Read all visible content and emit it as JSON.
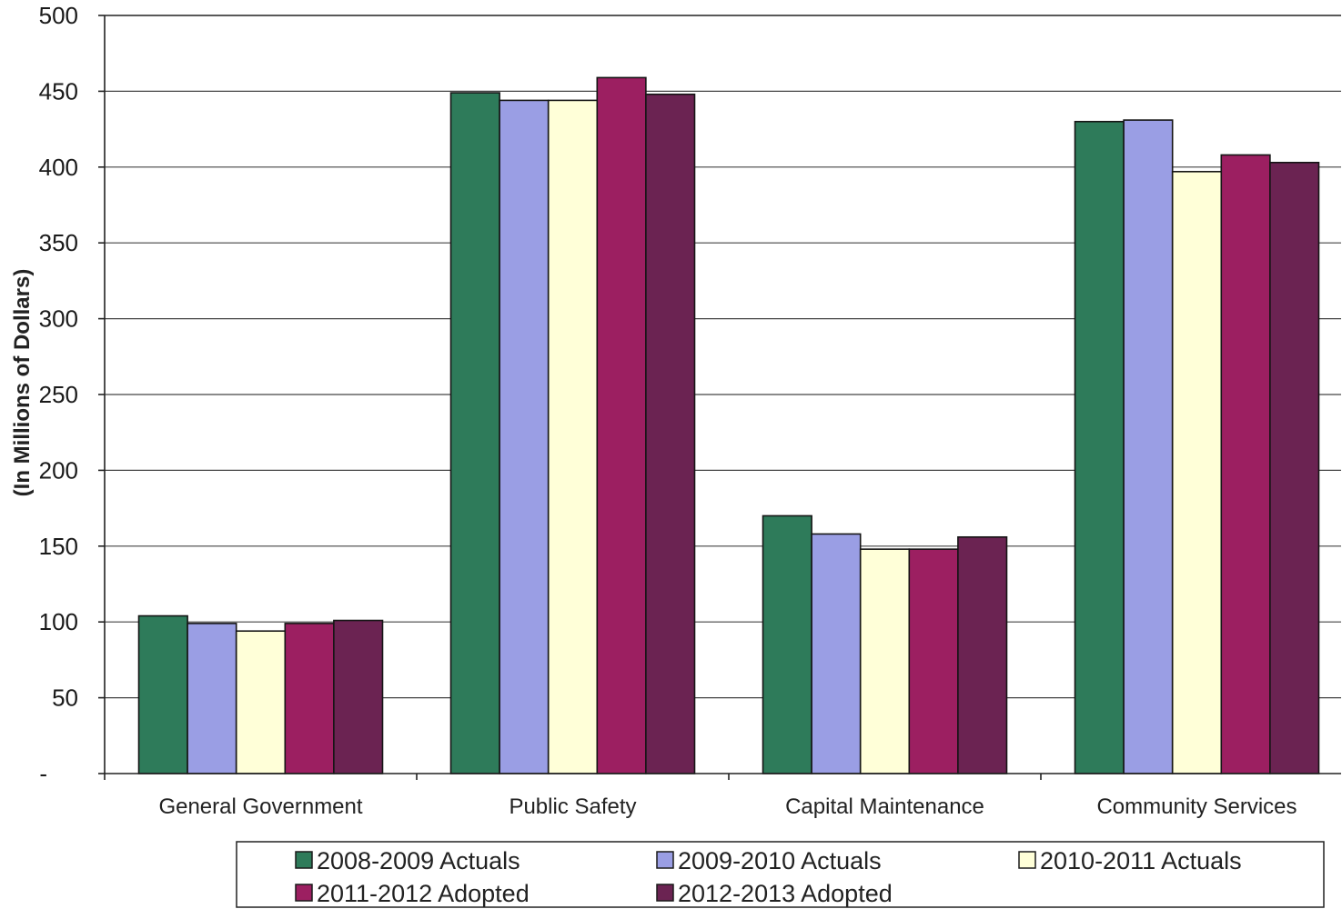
{
  "chart_data": {
    "type": "bar",
    "ylabel": "(In Millions of Dollars)",
    "ylim": [
      0,
      500
    ],
    "yticks": [
      0,
      50,
      100,
      150,
      200,
      250,
      300,
      350,
      400,
      450,
      500
    ],
    "ytick_labels": [
      "-",
      "50",
      "100",
      "150",
      "200",
      "250",
      "300",
      "350",
      "400",
      "450",
      "500"
    ],
    "grid": true,
    "legend_position": "bottom",
    "categories": [
      "General Government",
      "Public Safety",
      "Capital Maintenance",
      "Community Services"
    ],
    "series": [
      {
        "name": "2008-2009 Actuals",
        "color": "#2e7b5a",
        "values": [
          104,
          449,
          170,
          430
        ]
      },
      {
        "name": "2009-2010 Actuals",
        "color": "#9a9ee4",
        "values": [
          99,
          444,
          158,
          431
        ]
      },
      {
        "name": "2010-2011 Actuals",
        "color": "#ffffd8",
        "values": [
          94,
          444,
          148,
          397
        ]
      },
      {
        "name": "2011-2012 Adopted",
        "color": "#9c1f61",
        "values": [
          99,
          459,
          148,
          408
        ]
      },
      {
        "name": "2012-2013 Adopted",
        "color": "#6b2352",
        "values": [
          101,
          448,
          156,
          403
        ]
      }
    ]
  }
}
